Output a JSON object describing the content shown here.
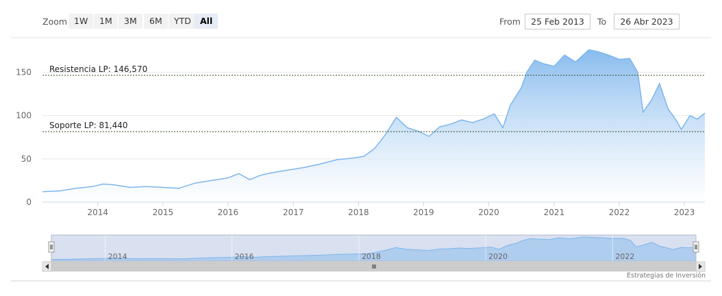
{
  "range_selector": {
    "zoom_label": "Zoom",
    "buttons": [
      "1W",
      "1M",
      "3M",
      "6M",
      "YTD",
      "All"
    ],
    "active": "All",
    "from_label": "From",
    "from_value": "25 Feb 2013",
    "to_label": "To",
    "to_value": "26 Abr 2023"
  },
  "credits": "Estrategias de Inversión",
  "colors": {
    "line": "#7cb5ec",
    "fill_top": "#7cb5ec",
    "fill_bottom": "#ffffff",
    "plot_lines": "#2b4a1f",
    "navigator_mask": "#ccd6eb",
    "scrollbar": "#cccccc"
  },
  "chart_data": {
    "type": "area",
    "x_start": "2013-02-25",
    "x_end": "2023-04-26",
    "ylim": [
      0,
      190
    ],
    "y_ticks": [
      0,
      50,
      100,
      150
    ],
    "x_tick_labels": [
      "2014",
      "2015",
      "2016",
      "2017",
      "2018",
      "2019",
      "2020",
      "2021",
      "2022",
      "2023"
    ],
    "navigator_tick_labels": [
      "2014",
      "2016",
      "2018",
      "2020",
      "2022"
    ],
    "plot_lines": [
      {
        "label": "Resistencia LP: 146,570",
        "value": 146.57
      },
      {
        "label": "Soporte LP: 81,440",
        "value": 81.44
      }
    ],
    "series": [
      {
        "x": [
          "2013-02-25",
          "2013-06-01",
          "2013-09-01",
          "2013-12-01",
          "2014-02-01",
          "2014-04-01",
          "2014-07-01",
          "2014-10-01",
          "2015-01-01",
          "2015-04-01",
          "2015-07-01",
          "2015-10-01",
          "2016-01-01",
          "2016-03-01",
          "2016-05-01",
          "2016-07-01",
          "2016-09-01",
          "2016-12-01",
          "2017-03-01",
          "2017-06-01",
          "2017-09-01",
          "2017-12-01",
          "2018-02-01",
          "2018-04-01",
          "2018-06-01",
          "2018-08-01",
          "2018-10-01",
          "2018-12-01",
          "2019-02-01",
          "2019-04-01",
          "2019-06-01",
          "2019-08-01",
          "2019-10-01",
          "2019-12-01",
          "2020-02-01",
          "2020-03-20",
          "2020-05-01",
          "2020-07-01",
          "2020-08-01",
          "2020-09-15",
          "2020-11-01",
          "2021-01-01",
          "2021-03-01",
          "2021-05-01",
          "2021-07-15",
          "2021-09-01",
          "2021-11-01",
          "2022-01-01",
          "2022-03-01",
          "2022-04-15",
          "2022-05-15",
          "2022-07-01",
          "2022-08-15",
          "2022-10-01",
          "2022-11-15",
          "2022-12-15",
          "2023-02-01",
          "2023-03-15",
          "2023-04-26"
        ],
        "y": [
          12,
          13,
          16,
          18,
          21,
          20,
          17,
          18,
          17,
          16,
          22,
          25,
          28,
          33,
          26,
          31,
          34,
          37,
          40,
          44,
          49,
          51,
          53,
          62,
          78,
          98,
          86,
          82,
          76,
          87,
          90,
          95,
          92,
          96,
          102,
          86,
          112,
          132,
          150,
          164,
          160,
          157,
          170,
          162,
          176,
          174,
          170,
          165,
          166,
          150,
          104,
          118,
          137,
          108,
          95,
          84,
          100,
          96,
          103
        ]
      }
    ]
  }
}
